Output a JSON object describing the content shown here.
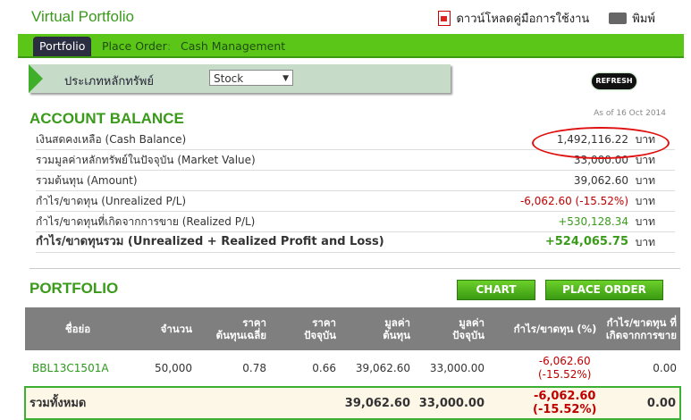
{
  "header": {
    "title": "Virtual Portfolio",
    "download_manual": "ดาวน์โหลดคู่มือการใช้งาน",
    "print": "พิมพ์"
  },
  "nav": {
    "tabs": [
      "Portfolio",
      "Place Order",
      "Cash Management"
    ],
    "active": "Portfolio",
    "separator": ":"
  },
  "filter": {
    "label": "ประเภทหลักทรัพย์",
    "selected": "Stock",
    "refresh": "REFRESH"
  },
  "account": {
    "title": "ACCOUNT BALANCE",
    "as_of": "As of 16 Oct 2014",
    "unit": "บาท",
    "rows": [
      {
        "label": "เงินสดคงเหลือ (Cash Balance)",
        "value": "1,492,116.22"
      },
      {
        "label": "รวมมูลค่าหลักทรัพย์ในปัจจุบัน (Market Value)",
        "value": "33,000.00"
      },
      {
        "label": "รวมต้นทุน (Amount)",
        "value": "39,062.60"
      },
      {
        "label": "กำไร/ขาดทุน (Unrealized P/L)",
        "value": "-6,062.60 (-15.52%)"
      },
      {
        "label": "กำไร/ขาดทุนที่เกิดจากการขาย (Realized P/L)",
        "value": "+530,128.34"
      },
      {
        "label": "กำไร/ขาดทุนรวม (Unrealized + Realized Profit and Loss)",
        "value": "+524,065.75"
      }
    ]
  },
  "portfolio": {
    "title": "PORTFOLIO",
    "chart_btn": "CHART",
    "order_btn": "PLACE ORDER",
    "columns": [
      "ชื่อย่อ",
      "จำนวน",
      "ราคา\nต้นทุนเฉลี่ย",
      "ราคา\nปัจจุบัน",
      "มูลค่า\nต้นทุน",
      "มูลค่า\nปัจจุบัน",
      "กำไร/ขาดทุน (%)",
      "กำไร/ขาดทุน ที่\nเกิดจากการขาย"
    ],
    "rows": [
      {
        "symbol": "BBL13C1501A",
        "qty": "50,000",
        "avg_cost": "0.78",
        "price": "0.66",
        "cost_value": "39,062.60",
        "market_value": "33,000.00",
        "pl": "-6,062.60",
        "pl_pct": "(-15.52%)",
        "realized": "0.00"
      }
    ],
    "total": {
      "label": "รวมทั้งหมด",
      "cost_value": "39,062.60",
      "market_value": "33,000.00",
      "pl": "-6,062.60",
      "pl_pct": "(-15.52%)",
      "realized": "0.00"
    }
  },
  "colors": {
    "brand_green": "#3a9a1a",
    "nav_green": "#5cc618",
    "negative": "#c00000",
    "highlight_circle": "#e01010"
  }
}
